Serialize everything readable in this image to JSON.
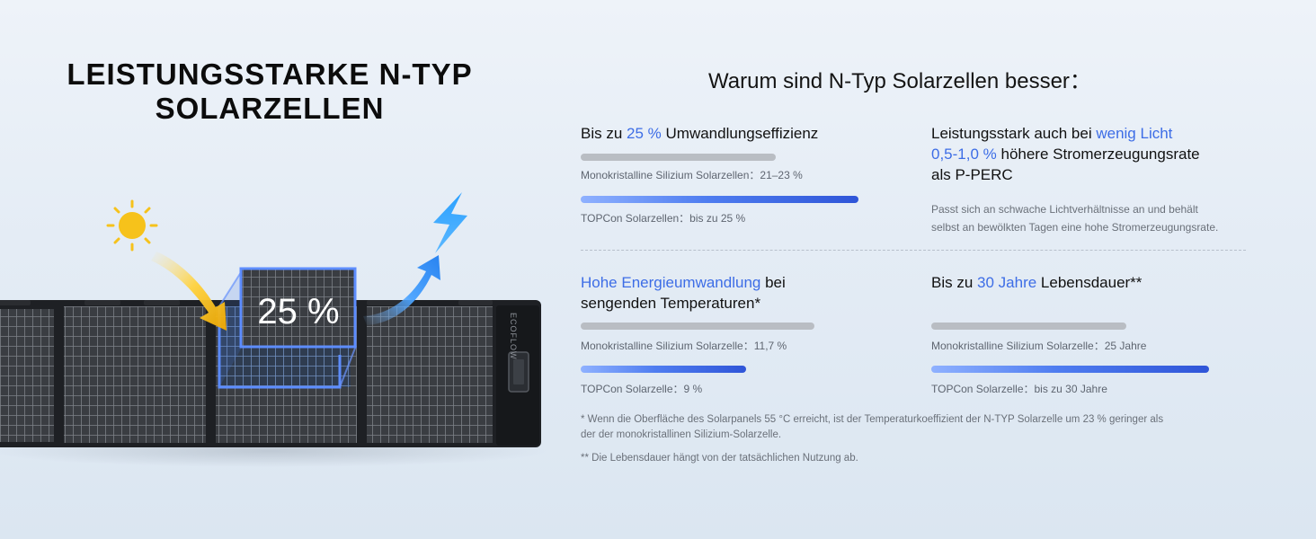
{
  "left": {
    "title_line1": "LEISTUNGSSTARKE N-TYP",
    "title_line2": "SOLARZELLEN",
    "badge_text": "25 %",
    "panel_brand": "ECOFLOW"
  },
  "headline": "Warum sind N-Typ Solarzellen besser：",
  "efficiency": {
    "title_pre": "Bis zu ",
    "title_hl": "25 %",
    "title_post": " Umwandlungseffizienz",
    "mono_caption": "Monokristalline Silizium Solarzellen：21–23 %",
    "topcon_caption": "TOPCon Solarzellen：bis zu 25 %",
    "mono_fraction": 0.7,
    "topcon_fraction": 1.0
  },
  "low_light": {
    "title_pre": "Leistungsstark auch bei ",
    "title_hl1": "wenig Licht",
    "title_hl2": "0,5-1,0 %",
    "title_mid": " höhere Stromerzeugungsrate",
    "title_post": "als P-PERC",
    "desc_line1": "Passt sich an schwache Lichtverhältnisse an und behält",
    "desc_line2": "selbst an bewölkten Tagen eine hohe Stromerzeugungsrate."
  },
  "temperature": {
    "title_hl": "Hohe Energieumwandlung",
    "title_post1": " bei",
    "title_line2": "sengenden Temperaturen*",
    "mono_caption": "Monokristalline Silizium Solarzelle：11,7 %",
    "topcon_caption": "TOPCon Solarzelle：9 %",
    "mono_fraction": 1.0,
    "topcon_fraction": 0.7
  },
  "lifetime": {
    "title_pre": "Bis zu ",
    "title_hl": "30 Jahre",
    "title_post": " Lebensdauer**",
    "mono_caption": "Monokristalline Silizium Solarzelle：25 Jahre",
    "topcon_caption": "TOPCon Solarzelle：bis zu 30 Jahre",
    "mono_fraction": 0.7,
    "topcon_fraction": 1.0
  },
  "footnote1_line1": "* Wenn die Oberfläche des Solarpanels 55 °C erreicht, ist der Temperaturkoeffizient der N-TYP Solarzelle um 23 % geringer als",
  "footnote1_line2": "der der monokristallinen Silizium-Solarzelle.",
  "footnote2": "** Die Lebensdauer hängt von der tatsächlichen Nutzung ab.",
  "colors": {
    "accent_blue": "#3d6de6",
    "bar_gray": "#b9bdc3",
    "sun_yellow": "#f6c21b",
    "lightning_blue": "#2f8cf5"
  }
}
